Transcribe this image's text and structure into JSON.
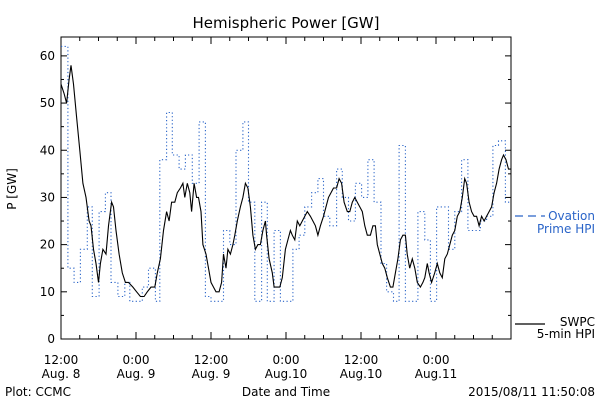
{
  "chart_data": {
    "type": "line",
    "title": "Hemispheric Power [GW]",
    "xlabel": "Date and Time",
    "ylabel": "P [GW]",
    "ylim": [
      0,
      64
    ],
    "xlim_hours": [
      0,
      72
    ],
    "grid": false,
    "legend_position": "right",
    "y_ticks": [
      0,
      10,
      20,
      30,
      40,
      50,
      60
    ],
    "x_ticks": [
      {
        "h": 0,
        "time": "12:00",
        "date": "Aug. 8"
      },
      {
        "h": 12,
        "time": "0:00",
        "date": "Aug. 9"
      },
      {
        "h": 24,
        "time": "12:00",
        "date": "Aug. 9"
      },
      {
        "h": 36,
        "time": "0:00",
        "date": "Aug.10"
      },
      {
        "h": 48,
        "time": "12:00",
        "date": "Aug.10"
      },
      {
        "h": 60,
        "time": "0:00",
        "date": "Aug.11"
      }
    ],
    "series": [
      {
        "name": "Ovation Prime HPI",
        "legend_lines": [
          "Ovation",
          "Prime HPI"
        ],
        "color": "#2a64c8",
        "style": "dotted-step",
        "points": [
          [
            0.0,
            62
          ],
          [
            1.1,
            15
          ],
          [
            2.1,
            12
          ],
          [
            3.1,
            19
          ],
          [
            4.2,
            28
          ],
          [
            5.0,
            9
          ],
          [
            6.1,
            27
          ],
          [
            7.1,
            31
          ],
          [
            8.0,
            12
          ],
          [
            9.1,
            9
          ],
          [
            10.2,
            12
          ],
          [
            11.0,
            8
          ],
          [
            12.1,
            8
          ],
          [
            13.0,
            11
          ],
          [
            14.0,
            15
          ],
          [
            15.1,
            8
          ],
          [
            15.8,
            38
          ],
          [
            16.9,
            48
          ],
          [
            17.8,
            39
          ],
          [
            18.9,
            36
          ],
          [
            19.9,
            39
          ],
          [
            21.0,
            33
          ],
          [
            22.1,
            46
          ],
          [
            23.1,
            9
          ],
          [
            24.0,
            8
          ],
          [
            25.1,
            8
          ],
          [
            26.0,
            23
          ],
          [
            27.0,
            20
          ],
          [
            28.0,
            40
          ],
          [
            29.1,
            46
          ],
          [
            30.0,
            29
          ],
          [
            31.0,
            8
          ],
          [
            32.1,
            29
          ],
          [
            33.0,
            8
          ],
          [
            34.1,
            23
          ],
          [
            35.1,
            8
          ],
          [
            36.1,
            8
          ],
          [
            37.1,
            19
          ],
          [
            38.1,
            22
          ],
          [
            39.0,
            28
          ],
          [
            40.1,
            31
          ],
          [
            41.1,
            34
          ],
          [
            42.0,
            26
          ],
          [
            43.0,
            24
          ],
          [
            44.1,
            36
          ],
          [
            45.0,
            30
          ],
          [
            46.0,
            25
          ],
          [
            47.1,
            33
          ],
          [
            48.1,
            30
          ],
          [
            49.1,
            38
          ],
          [
            50.1,
            29
          ],
          [
            51.2,
            16
          ],
          [
            52.1,
            10
          ],
          [
            53.2,
            8
          ],
          [
            54.1,
            41
          ],
          [
            55.1,
            8
          ],
          [
            56.0,
            8
          ],
          [
            57.1,
            27
          ],
          [
            58.2,
            21
          ],
          [
            59.1,
            8
          ],
          [
            60.1,
            28
          ],
          [
            61.1,
            28
          ],
          [
            62.0,
            19
          ],
          [
            63.0,
            27
          ],
          [
            64.1,
            38
          ],
          [
            65.1,
            23
          ],
          [
            66.2,
            23
          ],
          [
            67.1,
            25
          ],
          [
            68.1,
            26
          ],
          [
            69.1,
            41
          ],
          [
            70.0,
            42
          ],
          [
            71.1,
            29
          ],
          [
            72.0,
            29
          ]
        ]
      },
      {
        "name": "SWPC 5-min HPI",
        "legend_lines": [
          "SWPC",
          "5-min HPI"
        ],
        "color": "#000000",
        "style": "solid",
        "points": [
          [
            0.0,
            54
          ],
          [
            0.5,
            52
          ],
          [
            0.9,
            50
          ],
          [
            1.3,
            55
          ],
          [
            1.6,
            58
          ],
          [
            2.0,
            54
          ],
          [
            2.5,
            47
          ],
          [
            3.0,
            40
          ],
          [
            3.5,
            33
          ],
          [
            4.0,
            30
          ],
          [
            4.5,
            25
          ],
          [
            4.8,
            24
          ],
          [
            5.2,
            19
          ],
          [
            5.6,
            16
          ],
          [
            6.0,
            12
          ],
          [
            6.3,
            16
          ],
          [
            6.7,
            19
          ],
          [
            7.2,
            18
          ],
          [
            7.6,
            24
          ],
          [
            8.1,
            29
          ],
          [
            8.4,
            28
          ],
          [
            8.8,
            23
          ],
          [
            9.3,
            18
          ],
          [
            9.8,
            14
          ],
          [
            10.3,
            12
          ],
          [
            10.8,
            12
          ],
          [
            11.5,
            11
          ],
          [
            12.1,
            10
          ],
          [
            12.7,
            9
          ],
          [
            13.3,
            9
          ],
          [
            13.8,
            10
          ],
          [
            14.4,
            11
          ],
          [
            15.0,
            11
          ],
          [
            15.4,
            14
          ],
          [
            15.9,
            17
          ],
          [
            16.4,
            23
          ],
          [
            16.9,
            27
          ],
          [
            17.3,
            25
          ],
          [
            17.7,
            29
          ],
          [
            18.2,
            29
          ],
          [
            18.6,
            31
          ],
          [
            19.1,
            32
          ],
          [
            19.5,
            33
          ],
          [
            19.8,
            30
          ],
          [
            20.2,
            33
          ],
          [
            20.6,
            31
          ],
          [
            20.9,
            27
          ],
          [
            21.3,
            33
          ],
          [
            21.7,
            30
          ],
          [
            22.0,
            30
          ],
          [
            22.4,
            27
          ],
          [
            22.7,
            20
          ],
          [
            23.2,
            18
          ],
          [
            23.6,
            15
          ],
          [
            24.0,
            12
          ],
          [
            24.4,
            11
          ],
          [
            24.8,
            10
          ],
          [
            25.3,
            10
          ],
          [
            25.7,
            12
          ],
          [
            26.0,
            18
          ],
          [
            26.4,
            15
          ],
          [
            26.7,
            19
          ],
          [
            27.1,
            18
          ],
          [
            27.5,
            20
          ],
          [
            27.8,
            22
          ],
          [
            28.2,
            25
          ],
          [
            28.7,
            28
          ],
          [
            29.1,
            30
          ],
          [
            29.5,
            33
          ],
          [
            29.9,
            32
          ],
          [
            30.3,
            28
          ],
          [
            30.7,
            22
          ],
          [
            31.1,
            19
          ],
          [
            31.5,
            20
          ],
          [
            31.9,
            20
          ],
          [
            32.3,
            23
          ],
          [
            32.7,
            25
          ],
          [
            32.9,
            22
          ],
          [
            33.3,
            17
          ],
          [
            33.8,
            14
          ],
          [
            34.1,
            11
          ],
          [
            34.5,
            11
          ],
          [
            35.0,
            11
          ],
          [
            35.4,
            13
          ],
          [
            35.9,
            19
          ],
          [
            36.3,
            21
          ],
          [
            36.7,
            23
          ],
          [
            37.0,
            22
          ],
          [
            37.4,
            21
          ],
          [
            37.8,
            25
          ],
          [
            38.2,
            24
          ],
          [
            38.6,
            25
          ],
          [
            39.0,
            26
          ],
          [
            39.4,
            27
          ],
          [
            39.9,
            26
          ],
          [
            40.3,
            25
          ],
          [
            40.7,
            24
          ],
          [
            41.1,
            22
          ],
          [
            41.5,
            24
          ],
          [
            42.0,
            26
          ],
          [
            42.4,
            28
          ],
          [
            42.8,
            30
          ],
          [
            43.2,
            31
          ],
          [
            43.6,
            32
          ],
          [
            44.1,
            32
          ],
          [
            44.5,
            34
          ],
          [
            44.9,
            33
          ],
          [
            45.3,
            29
          ],
          [
            45.8,
            27
          ],
          [
            46.2,
            27
          ],
          [
            46.6,
            29
          ],
          [
            47.0,
            30
          ],
          [
            47.4,
            29
          ],
          [
            47.8,
            28
          ],
          [
            48.2,
            27
          ],
          [
            48.6,
            24
          ],
          [
            49.0,
            22
          ],
          [
            49.5,
            22
          ],
          [
            49.9,
            24
          ],
          [
            50.3,
            24
          ],
          [
            50.6,
            20
          ],
          [
            51.0,
            18
          ],
          [
            51.4,
            16
          ],
          [
            51.8,
            15
          ],
          [
            52.2,
            13
          ],
          [
            52.7,
            11
          ],
          [
            53.1,
            11
          ],
          [
            53.5,
            14
          ],
          [
            53.9,
            17
          ],
          [
            54.3,
            21
          ],
          [
            54.7,
            22
          ],
          [
            55.1,
            22
          ],
          [
            55.4,
            18
          ],
          [
            55.8,
            15
          ],
          [
            56.2,
            17
          ],
          [
            56.6,
            15
          ],
          [
            57.0,
            12
          ],
          [
            57.5,
            11
          ],
          [
            57.9,
            12
          ],
          [
            58.2,
            13
          ],
          [
            58.6,
            16
          ],
          [
            58.9,
            14
          ],
          [
            59.3,
            12
          ],
          [
            59.8,
            14
          ],
          [
            60.2,
            16
          ],
          [
            60.6,
            14
          ],
          [
            61.0,
            13
          ],
          [
            61.4,
            17
          ],
          [
            61.8,
            18
          ],
          [
            62.2,
            20
          ],
          [
            62.6,
            22
          ],
          [
            63.0,
            23
          ],
          [
            63.4,
            26
          ],
          [
            63.8,
            27
          ],
          [
            64.2,
            30
          ],
          [
            64.6,
            34
          ],
          [
            64.9,
            33
          ],
          [
            65.3,
            29
          ],
          [
            65.7,
            27
          ],
          [
            66.1,
            26
          ],
          [
            66.5,
            26
          ],
          [
            66.9,
            24
          ],
          [
            67.3,
            26
          ],
          [
            67.7,
            25
          ],
          [
            68.1,
            26
          ],
          [
            68.5,
            27
          ],
          [
            68.9,
            28
          ],
          [
            69.3,
            31
          ],
          [
            69.7,
            33
          ],
          [
            70.1,
            36
          ],
          [
            70.5,
            38
          ],
          [
            70.8,
            39
          ],
          [
            71.2,
            38
          ],
          [
            71.6,
            36
          ],
          [
            72.0,
            36
          ]
        ]
      }
    ],
    "footer_left": "Plot: CCMC",
    "footer_right": "2015/08/11 11:50:08"
  }
}
